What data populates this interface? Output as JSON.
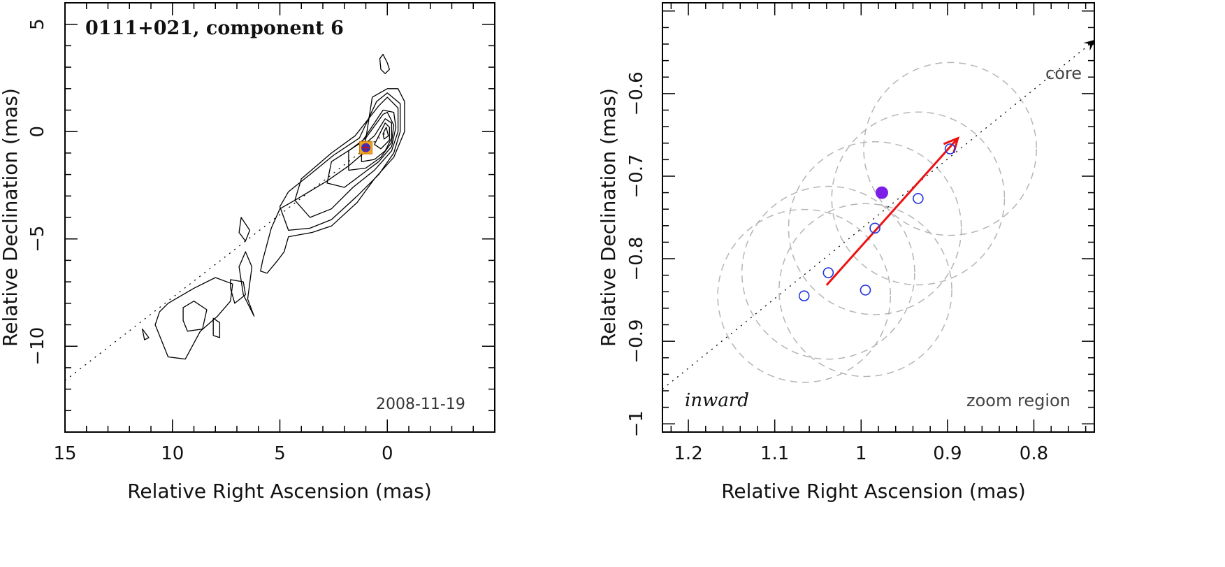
{
  "chart_data": [
    {
      "type": "contour",
      "title": "0111+021, component 6",
      "xlabel": "Relative Right Ascension (mas)",
      "ylabel": "Relative Declination (mas)",
      "xlim": [
        15,
        -5
      ],
      "ylim": [
        -14,
        6
      ],
      "x_ticks": [
        15,
        10,
        5,
        0
      ],
      "y_ticks": [
        5,
        0,
        -5,
        -10
      ],
      "annotation": "2008-11-19",
      "jet_direction_line": {
        "from": [
          15,
          -11.6
        ],
        "to": [
          0,
          0
        ]
      },
      "component_marker": {
        "x": 1.0,
        "y": -0.75,
        "colors": [
          "#f2a21b",
          "#2233dd",
          "#cc1111"
        ]
      },
      "contours": [
        {
          "level": 1,
          "points": [
            [
              0.7,
              1.6
            ],
            [
              1.1,
              -1.0
            ],
            [
              1.8,
              -1.6
            ],
            [
              2.8,
              -2.3
            ],
            [
              4.3,
              -3.2
            ],
            [
              5.0,
              -3.6
            ],
            [
              5.4,
              -4.5
            ],
            [
              5.8,
              -6.0
            ],
            [
              5.9,
              -6.5
            ],
            [
              5.6,
              -6.6
            ],
            [
              5.1,
              -6.0
            ],
            [
              4.8,
              -5.6
            ],
            [
              4.6,
              -4.9
            ],
            [
              3.5,
              -4.7
            ],
            [
              2.6,
              -4.4
            ],
            [
              1.4,
              -3.3
            ],
            [
              0.6,
              -2.2
            ],
            [
              -0.3,
              -1.2
            ],
            [
              -0.8,
              0.0
            ],
            [
              -0.8,
              1.4
            ],
            [
              -0.5,
              2.0
            ],
            [
              0.0,
              2.0
            ],
            [
              0.7,
              1.6
            ]
          ]
        },
        {
          "level": 2,
          "points": [
            [
              0.5,
              1.4
            ],
            [
              1.3,
              -0.3
            ],
            [
              2.5,
              -1.1
            ],
            [
              3.6,
              -2.0
            ],
            [
              4.6,
              -2.8
            ],
            [
              5.0,
              -3.5
            ],
            [
              4.6,
              -4.6
            ],
            [
              3.6,
              -4.5
            ],
            [
              2.6,
              -4.1
            ],
            [
              1.4,
              -3.0
            ],
            [
              0.4,
              -2.0
            ],
            [
              -0.3,
              -1.0
            ],
            [
              -0.6,
              0.0
            ],
            [
              -0.6,
              1.3
            ],
            [
              0.0,
              1.8
            ],
            [
              0.5,
              1.4
            ]
          ]
        },
        {
          "level": 3,
          "points": [
            [
              0.4,
              1.2
            ],
            [
              1.5,
              -0.2
            ],
            [
              2.6,
              -1.0
            ],
            [
              4.0,
              -2.2
            ],
            [
              4.3,
              -3.2
            ],
            [
              3.6,
              -4.0
            ],
            [
              2.6,
              -3.6
            ],
            [
              1.6,
              -2.6
            ],
            [
              0.6,
              -1.8
            ],
            [
              -0.2,
              -0.9
            ],
            [
              -0.5,
              0.0
            ],
            [
              -0.5,
              1.1
            ],
            [
              0.0,
              1.6
            ],
            [
              0.4,
              1.2
            ]
          ]
        },
        {
          "level": 4,
          "points": [
            [
              0.2,
              1.0
            ],
            [
              1.2,
              -0.5
            ],
            [
              2.6,
              -1.4
            ],
            [
              2.8,
              -2.4
            ],
            [
              2.0,
              -2.6
            ],
            [
              1.2,
              -2.0
            ],
            [
              0.4,
              -1.4
            ],
            [
              -0.2,
              -0.7
            ],
            [
              -0.4,
              0.2
            ],
            [
              -0.3,
              0.9
            ],
            [
              0.2,
              1.0
            ]
          ]
        },
        {
          "level": 5,
          "points": [
            [
              0.2,
              0.8
            ],
            [
              1.0,
              -0.3
            ],
            [
              1.8,
              -0.9
            ],
            [
              1.8,
              -1.8
            ],
            [
              1.0,
              -1.7
            ],
            [
              0.3,
              -1.2
            ],
            [
              -0.2,
              -0.5
            ],
            [
              -0.3,
              0.3
            ],
            [
              0.0,
              0.9
            ],
            [
              0.2,
              0.8
            ]
          ]
        },
        {
          "level": 6,
          "points": [
            [
              0.1,
              0.6
            ],
            [
              0.6,
              -0.2
            ],
            [
              1.2,
              -0.7
            ],
            [
              1.2,
              -1.4
            ],
            [
              0.6,
              -1.3
            ],
            [
              0.1,
              -0.9
            ],
            [
              -0.2,
              -0.3
            ],
            [
              -0.2,
              0.4
            ],
            [
              0.1,
              0.6
            ]
          ]
        },
        {
          "level": 7,
          "points": [
            [
              0.1,
              0.4
            ],
            [
              0.4,
              -0.2
            ],
            [
              0.6,
              -0.6
            ],
            [
              0.3,
              -0.8
            ],
            [
              -0.1,
              -0.4
            ],
            [
              -0.1,
              0.2
            ],
            [
              0.1,
              0.4
            ]
          ]
        },
        {
          "level": 8,
          "points": [
            [
              0.05,
              0.2
            ],
            [
              0.2,
              -0.1
            ],
            [
              0.15,
              -0.35
            ],
            [
              -0.05,
              -0.2
            ],
            [
              0.05,
              0.2
            ]
          ]
        },
        {
          "level": 1,
          "points": [
            [
              0.2,
              3.6
            ],
            [
              0.0,
              3.2
            ],
            [
              -0.1,
              2.9
            ],
            [
              0.1,
              2.7
            ],
            [
              0.3,
              2.9
            ],
            [
              0.35,
              3.4
            ],
            [
              0.2,
              3.6
            ]
          ]
        },
        {
          "level": 1,
          "points": [
            [
              6.8,
              -4.0
            ],
            [
              6.4,
              -4.6
            ],
            [
              6.6,
              -5.1
            ],
            [
              6.9,
              -4.7
            ],
            [
              6.8,
              -4.0
            ]
          ]
        },
        {
          "level": 1,
          "points": [
            [
              6.6,
              -5.6
            ],
            [
              6.3,
              -6.3
            ],
            [
              6.5,
              -7.8
            ],
            [
              6.2,
              -8.6
            ],
            [
              6.7,
              -7.6
            ],
            [
              6.9,
              -6.3
            ],
            [
              6.6,
              -5.6
            ]
          ]
        },
        {
          "level": 1,
          "points": [
            [
              7.3,
              -6.9
            ],
            [
              6.7,
              -7.0
            ],
            [
              6.6,
              -7.6
            ],
            [
              7.1,
              -8.0
            ],
            [
              7.3,
              -7.3
            ],
            [
              7.3,
              -6.9
            ]
          ]
        },
        {
          "level": 1,
          "points": [
            [
              10.2,
              -8.0
            ],
            [
              9.0,
              -7.3
            ],
            [
              8.0,
              -6.8
            ],
            [
              7.2,
              -7.1
            ],
            [
              7.3,
              -7.9
            ],
            [
              7.9,
              -8.6
            ],
            [
              8.7,
              -9.3
            ],
            [
              9.4,
              -10.6
            ],
            [
              10.2,
              -10.5
            ],
            [
              10.8,
              -9.0
            ],
            [
              10.6,
              -8.4
            ],
            [
              10.2,
              -8.0
            ]
          ]
        },
        {
          "level": 2,
          "points": [
            [
              9.5,
              -8.2
            ],
            [
              9.0,
              -7.9
            ],
            [
              8.4,
              -8.3
            ],
            [
              8.6,
              -9.2
            ],
            [
              9.3,
              -9.3
            ],
            [
              9.5,
              -8.8
            ],
            [
              9.5,
              -8.2
            ]
          ]
        },
        {
          "level": 1,
          "points": [
            [
              8.1,
              -8.7
            ],
            [
              7.8,
              -8.9
            ],
            [
              7.8,
              -9.6
            ],
            [
              8.1,
              -9.5
            ],
            [
              8.1,
              -8.7
            ]
          ]
        },
        {
          "level": 1,
          "points": [
            [
              11.4,
              -9.2
            ],
            [
              11.1,
              -9.6
            ],
            [
              11.3,
              -9.7
            ],
            [
              11.4,
              -9.2
            ]
          ]
        }
      ]
    },
    {
      "type": "scatter",
      "xlabel": "Relative Right Ascension (mas)",
      "ylabel": "Relative Declination (mas)",
      "xlim": [
        1.23,
        0.73
      ],
      "ylim": [
        -1.01,
        -0.49
      ],
      "x_ticks": [
        1.2,
        1.1,
        1,
        0.9,
        0.8
      ],
      "x_tick_labels": [
        "1.2",
        "1.1",
        "1",
        "0.9",
        "0.8"
      ],
      "y_ticks": [
        -0.6,
        -0.7,
        -0.8,
        -0.9,
        -1
      ],
      "y_tick_labels": [
        "−0.6",
        "−0.7",
        "−0.8",
        "−0.9",
        "−1"
      ],
      "annotation_left": "inward",
      "annotation_right": "zoom region",
      "core_label": "core",
      "core_direction_line": {
        "from": [
          1.23,
          -0.958
        ],
        "to": [
          0.735,
          -0.54
        ]
      },
      "epoch_positions": [
        {
          "x": 1.066,
          "y": -0.845
        },
        {
          "x": 1.038,
          "y": -0.817
        },
        {
          "x": 0.995,
          "y": -0.838
        },
        {
          "x": 0.984,
          "y": -0.763
        },
        {
          "x": 0.934,
          "y": -0.727
        },
        {
          "x": 0.897,
          "y": -0.667
        }
      ],
      "mean_position": {
        "x": 0.976,
        "y": -0.72,
        "color": "#7a1ee8"
      },
      "position_uncertainty_radius_mas": 0.1,
      "motion_vector": {
        "from": [
          1.04,
          -0.832
        ],
        "to": [
          0.888,
          -0.654
        ],
        "color": "#ee1111"
      }
    }
  ]
}
